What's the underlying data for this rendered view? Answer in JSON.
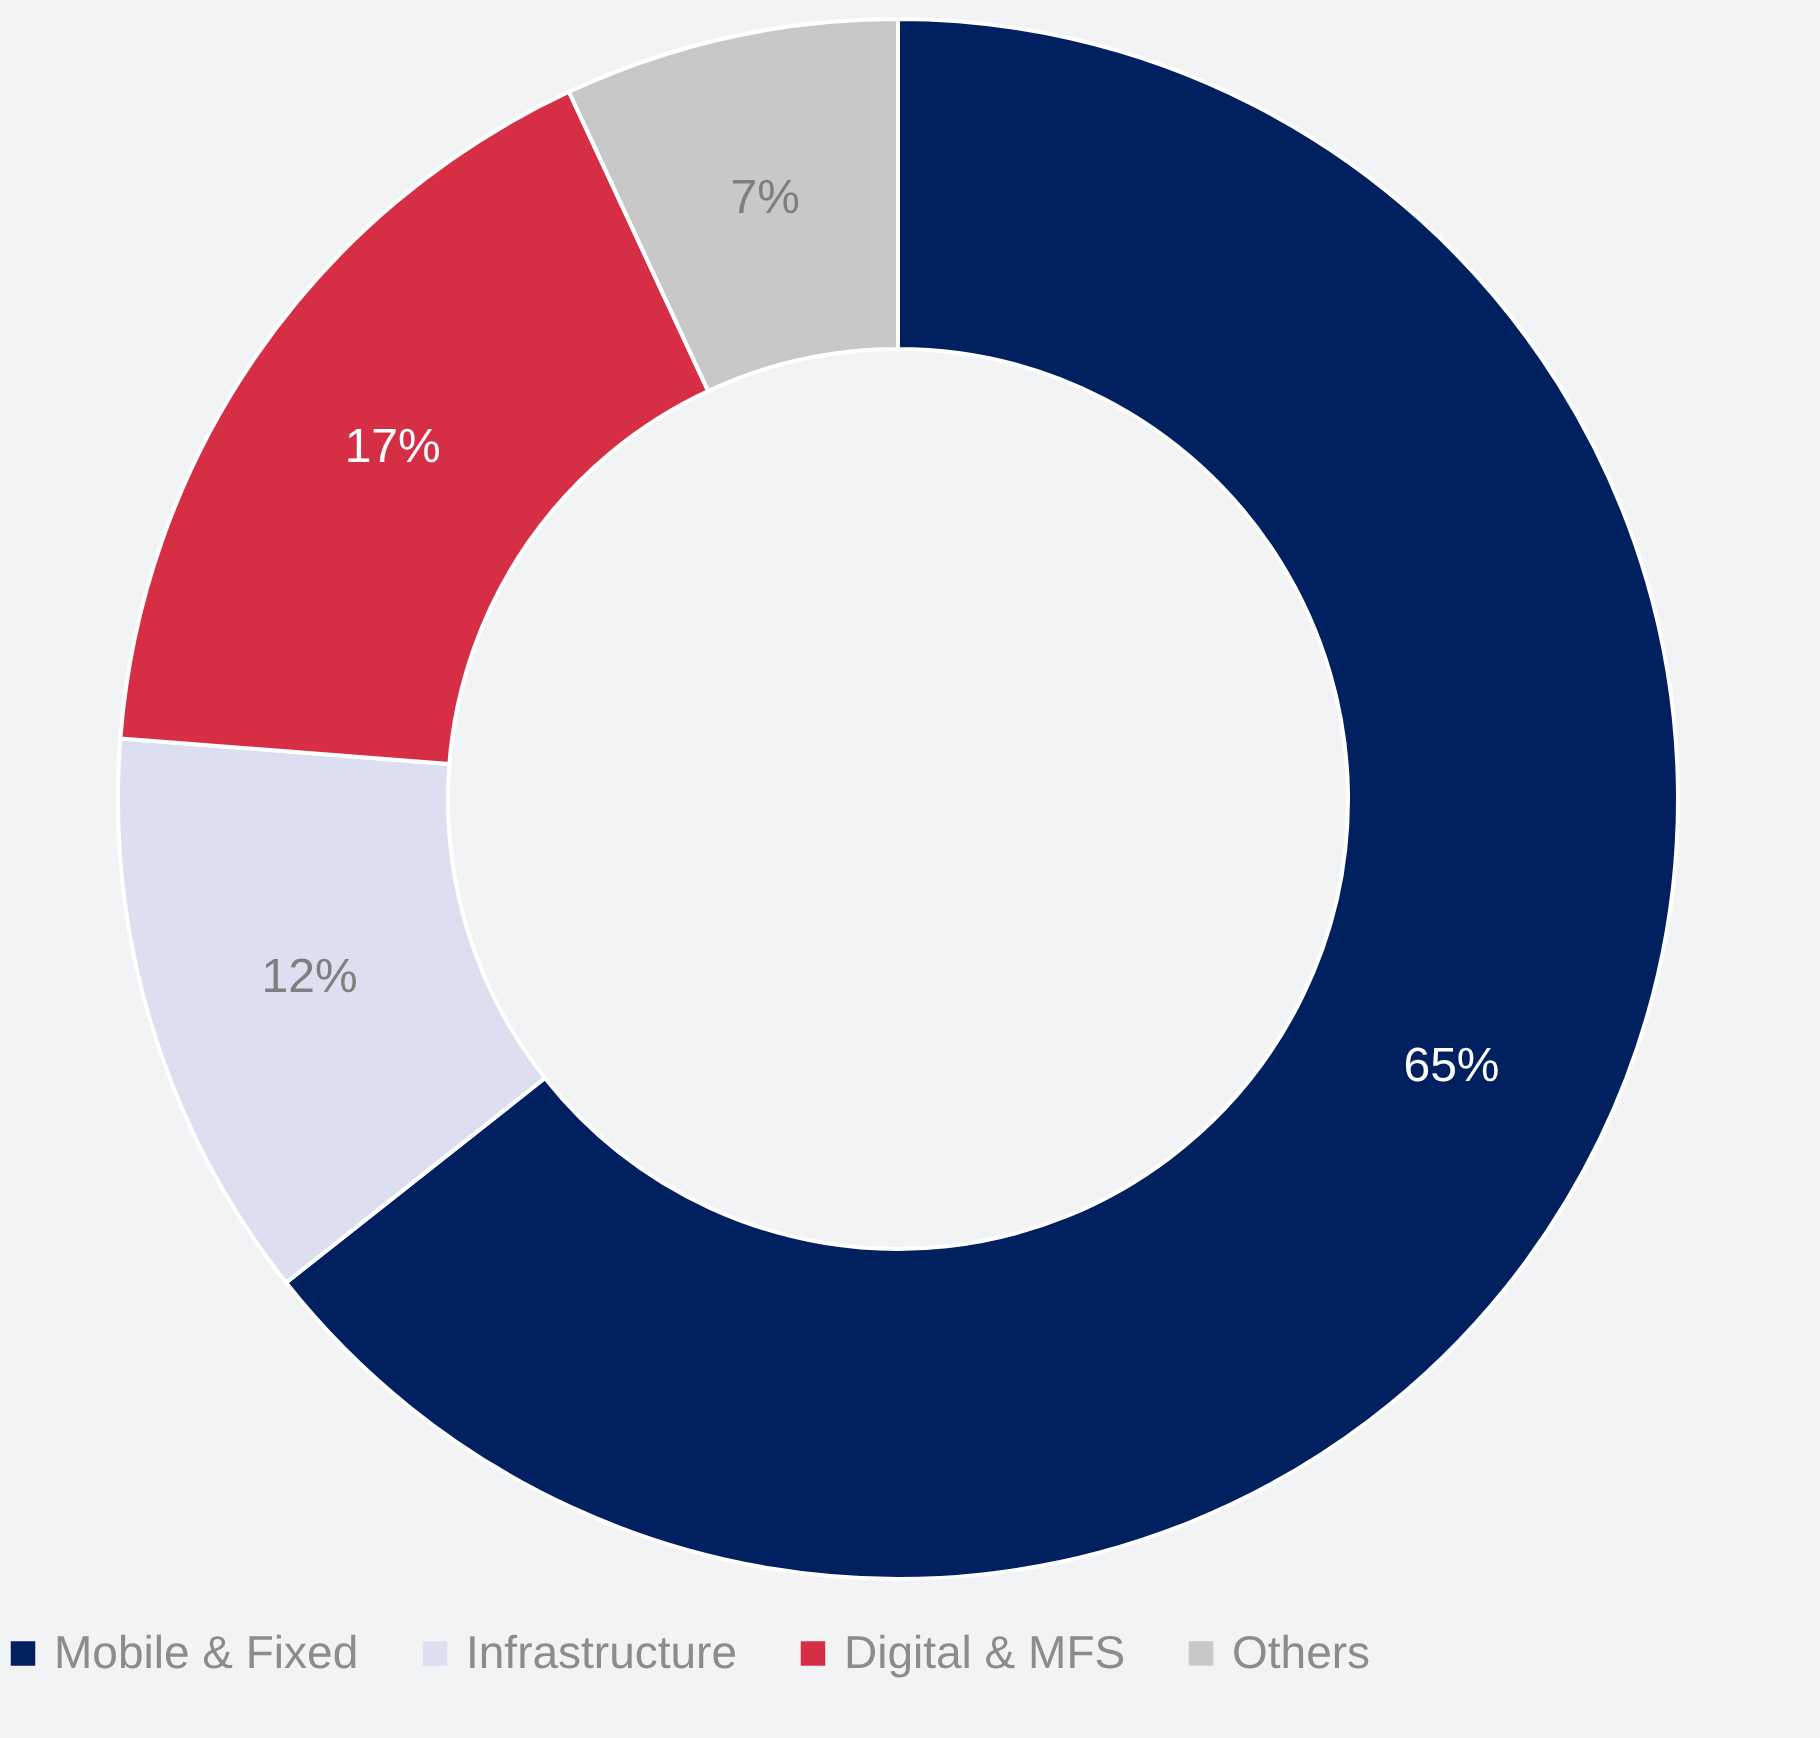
{
  "chart_data": {
    "type": "donut",
    "categories": [
      "Mobile & Fixed",
      "Infrastructure",
      "Digital & MFS",
      "Others"
    ],
    "values": [
      65,
      12,
      17,
      7
    ],
    "colors": [
      "#002060",
      "#dcdff0",
      "#d62f45",
      "#c8c8c8"
    ],
    "value_labels": [
      "65%",
      "12%",
      "17%",
      "7%"
    ],
    "legend": "bottom"
  }
}
